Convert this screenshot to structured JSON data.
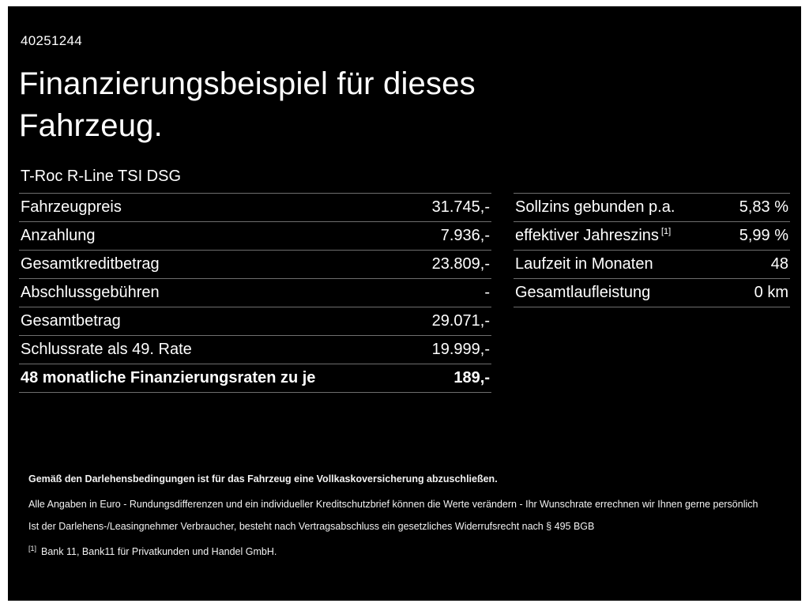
{
  "document": {
    "reference_number": "40251244",
    "title": "Finanzierungsbeispiel für dieses Fahrzeug.",
    "vehicle_model": "T-Roc R-Line TSI DSG"
  },
  "financing_table": {
    "rows": [
      {
        "label": "Fahrzeugpreis",
        "value": "31.745,-"
      },
      {
        "label": "Anzahlung",
        "value": "7.936,-"
      },
      {
        "label": "Gesamtkreditbetrag",
        "value": "23.809,-"
      },
      {
        "label": "Abschlussgebühren",
        "value": "-"
      },
      {
        "label": "Gesamtbetrag",
        "value": "29.071,-"
      },
      {
        "label": "Schlussrate als 49. Rate",
        "value": "19.999,-"
      },
      {
        "label": "48 monatliche Finanzierungsraten zu je",
        "value": "189,-"
      }
    ]
  },
  "conditions_table": {
    "rows": [
      {
        "label": "Sollzins gebunden p.a.",
        "sup": "",
        "value": "5,83 %"
      },
      {
        "label": "effektiver Jahreszins",
        "sup": "[1]",
        "value": "5,99 %"
      },
      {
        "label": "Laufzeit in Monaten",
        "sup": "",
        "value": "48"
      },
      {
        "label": "Gesamtlaufleistung",
        "sup": "",
        "value": "0 km"
      }
    ]
  },
  "footer": {
    "insurance_note": "Gemäß den Darlehensbedingungen ist für das Fahrzeug eine Vollkaskoversicherung abzuschließen.",
    "disclaimer1": "Alle Angaben in Euro - Rundungsdifferenzen und ein individueller Kreditschutzbrief können die Werte verändern - Ihr Wunschrate errechnen wir Ihnen gerne persönlich",
    "disclaimer2": "Ist der Darlehens-/Leasingnehmer Verbraucher, besteht nach Vertragsabschluss ein gesetzliches Widerrufsrecht nach § 495 BGB",
    "footnote_marker": "[1]",
    "footnote_text": "Bank 11, Bank11 für Privatkunden und Handel GmbH."
  }
}
